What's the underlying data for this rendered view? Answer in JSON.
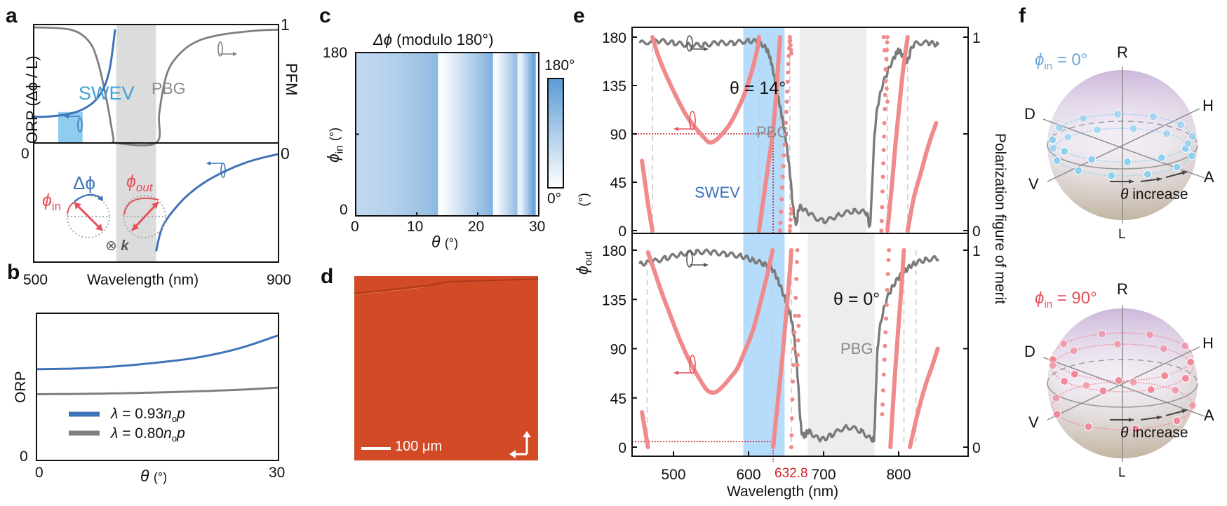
{
  "figure": {
    "panel_letters": [
      "a",
      "b",
      "c",
      "d",
      "e",
      "f"
    ]
  },
  "chart_data": [
    {
      "id": "a",
      "type": "line",
      "xlabel": "Wavelength (nm)",
      "ylabel_left": "ORP (Δϕ / L)",
      "ylabel_right": "PFM",
      "x_ticks": [
        "500",
        "900"
      ],
      "xlim": [
        500,
        900
      ],
      "y_left_ticks": [
        "0"
      ],
      "y_right_ticks": [
        "1",
        "0"
      ],
      "regions": [
        {
          "name": "SWEV",
          "x": [
            540,
            580
          ],
          "color": "#8fcdf0",
          "label_color": "#3ea2d9"
        },
        {
          "name": "PBG",
          "x": [
            635,
            700
          ],
          "color": "#dcdcdc",
          "label_color": "#8a8a8a"
        }
      ],
      "series": [
        {
          "name": "ORP",
          "color": "#3f73b8",
          "axis": "left",
          "x": [
            500,
            520,
            540,
            560,
            580,
            600,
            615,
            625,
            633,
            null,
            700,
            710,
            730,
            760,
            800,
            850,
            900
          ],
          "y": [
            0.17,
            0.17,
            0.18,
            0.2,
            0.24,
            0.32,
            0.45,
            0.65,
            1.0,
            null,
            -1.9,
            -1.45,
            -1.1,
            -0.75,
            -0.45,
            -0.2,
            -0.05
          ]
        },
        {
          "name": "PFM",
          "color": "#7f7f7f",
          "axis": "right",
          "x": [
            500,
            560,
            590,
            605,
            620,
            630,
            635,
            700,
            705,
            715,
            730,
            760,
            800,
            860,
            900
          ],
          "y": [
            1.0,
            0.98,
            0.88,
            0.7,
            0.35,
            0.05,
            0.0,
            0.0,
            0.25,
            0.55,
            0.72,
            0.86,
            0.93,
            0.97,
            0.98
          ]
        }
      ],
      "annotations": {
        "swev": "SWEV",
        "pbg": "PBG",
        "delta_phi": "Δϕ",
        "phi_in": "ϕ",
        "phi_in_sub": "in",
        "phi_out": "ϕ",
        "phi_out_sub": "out",
        "k_vector": "⊗",
        "k_label": "k"
      }
    },
    {
      "id": "b",
      "type": "line",
      "xlabel": "θ",
      "xlabel_unit": "(°)",
      "ylabel": "ORP",
      "x_ticks": [
        "0",
        "30"
      ],
      "y_ticks": [
        "0"
      ],
      "xlim": [
        0,
        30
      ],
      "ylim": [
        0,
        1
      ],
      "series": [
        {
          "name": "λ = 0.93nₒp",
          "color": "#3f73b8",
          "x": [
            0,
            5,
            10,
            15,
            20,
            25,
            30
          ],
          "y": [
            0.62,
            0.625,
            0.64,
            0.665,
            0.7,
            0.76,
            0.85
          ]
        },
        {
          "name": "λ = 0.80nₒp",
          "color": "#7f7f7f",
          "x": [
            0,
            5,
            10,
            15,
            20,
            25,
            30
          ],
          "y": [
            0.45,
            0.452,
            0.456,
            0.462,
            0.47,
            0.48,
            0.495
          ]
        }
      ],
      "legend": [
        {
          "prefix": "λ = 0.93",
          "n": "n",
          "sub": "o",
          "suffix": "p",
          "color": "#3f73b8"
        },
        {
          "prefix": "λ = 0.80",
          "n": "n",
          "sub": "o",
          "suffix": "p",
          "color": "#7f7f7f"
        }
      ],
      "legend_position": "bottom-left"
    },
    {
      "id": "c",
      "type": "heatmap",
      "title_symbol": "Δϕ",
      "title_rest": " (modulo 180°)",
      "xlabel": "θ",
      "xlabel_unit": "(°)",
      "ylabel": "ϕ",
      "ylabel_sub": "in",
      "ylabel_unit": "(°)",
      "x_ticks": [
        "0",
        "10",
        "20",
        "30"
      ],
      "y_ticks": [
        "180",
        "0"
      ],
      "xlim": [
        0,
        30
      ],
      "ylim": [
        0,
        180
      ],
      "colorbar": {
        "max_label": "180°",
        "min_label": "0°",
        "low_color": "#ffffff",
        "high_color": "#5b9bd5"
      },
      "theta": [
        0,
        1,
        2,
        3,
        4,
        5,
        6,
        7,
        8,
        9,
        10,
        11,
        12,
        13,
        14,
        15,
        16,
        17,
        18,
        19,
        20,
        21,
        22,
        23,
        24,
        25,
        26,
        27,
        28,
        29,
        30
      ],
      "delta_phi": [
        68,
        70,
        72,
        75,
        78,
        81,
        84,
        88,
        92,
        97,
        102,
        108,
        115,
        124,
        2,
        18,
        35,
        52,
        68,
        85,
        102,
        118,
        135,
        8,
        40,
        75,
        110,
        25,
        95,
        160,
        10
      ]
    },
    {
      "id": "e",
      "type": "scatter",
      "xlabel": "Wavelength (nm)",
      "ylabel_left": "ϕ",
      "ylabel_left_sub": "out",
      "ylabel_left_unit": "(°)",
      "ylabel_right": "Polarization figure of merit",
      "x_ticks": [
        "500",
        "600",
        "700",
        "800"
      ],
      "xlim": [
        450,
        852
      ],
      "y_left_ticks": [
        "0",
        "45",
        "90",
        "135",
        "180"
      ],
      "y_right_ticks": [
        "0",
        "1"
      ],
      "ylim_left": [
        -8,
        188
      ],
      "marker_wavelength": "632.8",
      "marker_color": "#d0222a",
      "subplots": [
        {
          "label": "θ = 14°",
          "swev_region": [
            593,
            648
          ],
          "pbg_region": [
            668,
            757
          ],
          "pbg_label": "PBG",
          "swev_label": "SWEV",
          "marker_phi": 90,
          "dashed_lines": [
            472,
            614,
            642,
            655,
            785,
            812
          ],
          "phi_out_segments": [
            {
              "x": [
                458,
                462,
                466,
                470,
                472
              ],
              "y": [
                65,
                45,
                25,
                8,
                0
              ]
            },
            {
              "x": [
                472,
                480,
                490,
                500,
                510,
                520,
                530,
                540,
                548,
                556,
                565,
                575,
                585,
                595,
                605,
                612,
                614
              ],
              "y": [
                180,
                162,
                145,
                130,
                116,
                104,
                95,
                87,
                82,
                84,
                90,
                99,
                112,
                128,
                150,
                170,
                180
              ]
            },
            {
              "x": [
                614,
                620,
                626,
                632,
                636,
                640,
                642
              ],
              "y": [
                0,
                30,
                60,
                90,
                120,
                160,
                180
              ]
            },
            {
              "x": [
                642,
                645,
                648,
                651,
                653,
                655
              ],
              "y": [
                0,
                40,
                80,
                120,
                155,
                180
              ],
              "style": "dots"
            },
            {
              "x": [
                655,
                657
              ],
              "y": [
                0,
                20
              ],
              "style": "dots"
            },
            {
              "x": [
                655,
                657
              ],
              "y": [
                180,
                165
              ],
              "style": "dots"
            },
            {
              "x": [
                777,
                779,
                781,
                783,
                785
              ],
              "y": [
                0,
                50,
                100,
                150,
                180
              ],
              "style": "dots"
            },
            {
              "x": [
                780,
                785
              ],
              "y": [
                180,
                120
              ],
              "style": "dots"
            },
            {
              "x": [
                785,
                790,
                795,
                800,
                806,
                812
              ],
              "y": [
                0,
                35,
                75,
                110,
                150,
                180
              ]
            },
            {
              "x": [
                812,
                820,
                830,
                840,
                850
              ],
              "y": [
                0,
                30,
                55,
                80,
                100
              ]
            }
          ],
          "pfm": {
            "x": [
              455,
              480,
              500,
              520,
              540,
              560,
              580,
              600,
              615,
              625,
              630,
              635,
              640,
              645,
              650,
              655,
              660,
              664,
              668,
              680,
              700,
              720,
              740,
              757,
              762,
              768,
              775,
              785,
              795,
              800,
              806,
              812,
              820,
              840,
              852
            ],
            "y": [
              0.97,
              0.98,
              0.97,
              0.96,
              0.96,
              0.97,
              0.97,
              0.98,
              0.97,
              0.93,
              0.87,
              0.78,
              0.68,
              0.58,
              0.46,
              0.3,
              0.1,
              0.04,
              0.12,
              0.09,
              0.05,
              0.08,
              0.1,
              0.09,
              0.04,
              0.5,
              0.7,
              0.82,
              0.9,
              0.93,
              0.9,
              0.88,
              0.96,
              0.97,
              0.96
            ]
          }
        },
        {
          "label": "θ = 0°",
          "swev_region": [
            593,
            648
          ],
          "pbg_region": [
            679,
            768
          ],
          "pbg_label": "PBG",
          "marker_phi": 5,
          "dashed_lines": [
            465,
            632.8,
            657,
            807,
            823
          ],
          "phi_out_segments": [
            {
              "x": [
                458,
                461,
                464,
                466
              ],
              "y": [
                32,
                20,
                8,
                0
              ]
            },
            {
              "x": [
                466,
                475,
                485,
                495,
                505,
                515,
                525,
                535,
                545,
                555,
                565,
                575,
                585,
                595,
                605,
                615,
                625,
                632
              ],
              "y": [
                178,
                160,
                140,
                122,
                104,
                88,
                74,
                62,
                52,
                50,
                55,
                63,
                72,
                88,
                105,
                130,
                158,
                180
              ]
            },
            {
              "x": [
                632.8,
                638,
                644,
                650,
                655,
                657
              ],
              "y": [
                0,
                35,
                75,
                120,
                160,
                180
              ]
            },
            {
              "x": [
                657,
                659,
                662,
                665
              ],
              "y": [
                0,
                60,
                120,
                180
              ],
              "style": "dots"
            },
            {
              "x": [
                665,
                667
              ],
              "y": [
                75,
                120
              ],
              "style": "dots"
            },
            {
              "x": [
                778,
                781,
                784,
                787
              ],
              "y": [
                30,
                80,
                130,
                180
              ],
              "style": "dots"
            },
            {
              "x": [
                789,
                793,
                798,
                803,
                807
              ],
              "y": [
                0,
                45,
                95,
                140,
                180
              ]
            },
            {
              "x": [
                807,
                812,
                818,
                823
              ],
              "y": [
                180,
                120,
                60,
                0
              ],
              "style": "skip"
            },
            {
              "x": [
                815,
                825,
                835,
                845,
                852
              ],
              "y": [
                0,
                30,
                55,
                75,
                90
              ]
            }
          ],
          "pfm": {
            "x": [
              455,
              470,
              490,
              510,
              530,
              550,
              570,
              590,
              605,
              620,
              632,
              640,
              648,
              655,
              660,
              665,
              670,
              675,
              680,
              695,
              710,
              730,
              750,
              765,
              768,
              772,
              780,
              790,
              800,
              810,
              820,
              835,
              852
            ],
            "y": [
              0.93,
              0.94,
              0.96,
              0.98,
              0.99,
              0.99,
              0.98,
              0.97,
              0.95,
              0.93,
              0.9,
              0.84,
              0.76,
              0.68,
              0.58,
              0.38,
              0.1,
              0.06,
              0.08,
              0.04,
              0.06,
              0.1,
              0.08,
              0.04,
              0.1,
              0.5,
              0.7,
              0.8,
              0.86,
              0.9,
              0.93,
              0.95,
              0.96
            ]
          }
        }
      ],
      "series_colors": {
        "phi_out": "#f08a8c",
        "pfm": "#7a7a7a",
        "swev": "#b5dcfb",
        "pbg": "#ededed"
      }
    },
    {
      "id": "f",
      "type": "scatter",
      "description": "Poincare sphere trajectories",
      "axis_labels": {
        "R": "R",
        "L": "L",
        "H": "H",
        "V": "V",
        "D": "D",
        "A": "A"
      },
      "arrow_label_symbol": "θ",
      "arrow_label_text": " increase",
      "spheres": [
        {
          "label_symbol": "ϕ",
          "label_sub": "in",
          "label_rest": " = 0°",
          "color": "#6aa6dc",
          "point_color": "#8dd0f0"
        },
        {
          "label_symbol": "ϕ",
          "label_sub": "in",
          "label_rest": " = 90°",
          "color": "#e5505a",
          "point_color": "#f08a9a"
        }
      ]
    }
  ],
  "panel_d": {
    "scale_bar": "100 μm",
    "image_color": "#d24a26"
  }
}
